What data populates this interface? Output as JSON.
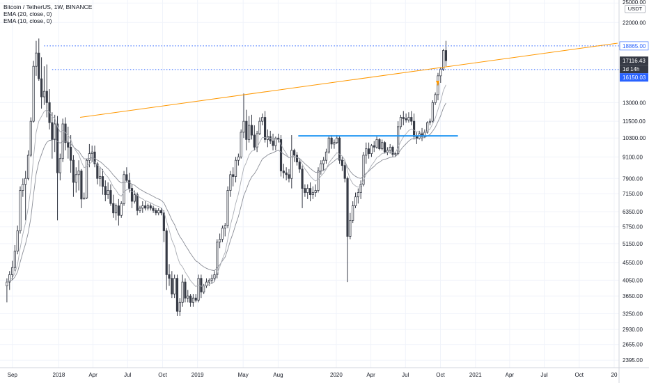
{
  "legend": {
    "symbol": "Bitcoin / TetherUS, 1W, BINANCE",
    "ema20": "EMA (20, close, 0)",
    "ema10": "EMA (10, close, 0)"
  },
  "axis_unit": "USDT",
  "colors": {
    "candle_up": "#ffffff",
    "candle_down": "#363a45",
    "candle_outline": "#363a45",
    "ema20": "#8a8d96",
    "ema10": "#a9acb3",
    "trendline": "#ff9800",
    "support_line": "#2196f3",
    "level_lines": "#2962ff",
    "current_price_tag": "#363a45",
    "level_tag": "#2962ff",
    "grid": "#f0f3fa"
  },
  "chart_data": {
    "type": "candlestick",
    "title": "Bitcoin / TetherUS, 1W, BINANCE",
    "interval": "1W",
    "y_scale": "log",
    "ylim": [
      2280,
      25500
    ],
    "x_ticks": [
      {
        "label": "Sep",
        "date": "2017-09-01"
      },
      {
        "label": "2018",
        "date": "2018-01-01"
      },
      {
        "label": "Apr",
        "date": "2018-04-01"
      },
      {
        "label": "Jul",
        "date": "2018-07-01"
      },
      {
        "label": "Oct",
        "date": "2018-10-01"
      },
      {
        "label": "2019",
        "date": "2019-01-01"
      },
      {
        "label": "May",
        "date": "2019-05-01"
      },
      {
        "label": "Aug",
        "date": "2019-08-01"
      },
      {
        "label": "2020",
        "date": "2020-01-01"
      },
      {
        "label": "Apr",
        "date": "2020-04-01"
      },
      {
        "label": "Jul",
        "date": "2020-07-01"
      },
      {
        "label": "Oct",
        "date": "2020-10-01"
      },
      {
        "label": "2021",
        "date": "2021-01-01"
      },
      {
        "label": "Apr",
        "date": "2021-04-01"
      },
      {
        "label": "Jul",
        "date": "2021-07-01"
      },
      {
        "label": "Oct",
        "date": "2021-10-01"
      },
      {
        "label": "20",
        "date": "2022-01-01"
      }
    ],
    "y_ticks": [
      {
        "label": "25000.00",
        "value": 25000
      },
      {
        "label": "22000.00",
        "value": 22000
      },
      {
        "label": "13000.00",
        "value": 13000
      },
      {
        "label": "11500.00",
        "value": 11500
      },
      {
        "label": "10300.00",
        "value": 10300
      },
      {
        "label": "9100.00",
        "value": 9100
      },
      {
        "label": "7900.00",
        "value": 7900
      },
      {
        "label": "7150.00",
        "value": 7150
      },
      {
        "label": "6350.00",
        "value": 6350
      },
      {
        "label": "5750.00",
        "value": 5750
      },
      {
        "label": "5150.00",
        "value": 5150
      },
      {
        "label": "4550.00",
        "value": 4550
      },
      {
        "label": "4050.00",
        "value": 4050
      },
      {
        "label": "3650.00",
        "value": 3650
      },
      {
        "label": "3250.00",
        "value": 3250
      },
      {
        "label": "2930.00",
        "value": 2930
      },
      {
        "label": "2655.00",
        "value": 2655
      },
      {
        "label": "2395.00",
        "value": 2395
      }
    ],
    "price_tags": [
      {
        "label": "18865.00",
        "value": 18865,
        "style": "level"
      },
      {
        "label": "17116.43",
        "value": 17116.43,
        "style": "current"
      },
      {
        "label": "1d 14h",
        "value": 15800,
        "style": "countdown"
      },
      {
        "label": "16150.03",
        "value": 15000,
        "style": "level"
      }
    ],
    "horizontal_levels": [
      18865,
      16150
    ],
    "resistance_trendline": {
      "from": {
        "date": "2018-02-26",
        "value": 11800
      },
      "to": {
        "date": "2022-01-10",
        "value": 19200
      }
    },
    "support_segment": {
      "from": {
        "date": "2019-09-23",
        "value": 10450
      },
      "to": {
        "date": "2020-11-16",
        "value": 10450
      }
    },
    "candles": [
      [
        3900,
        4100,
        3500,
        4000
      ],
      [
        4000,
        4300,
        3800,
        4200
      ],
      [
        4200,
        4600,
        4050,
        4400
      ],
      [
        4400,
        5100,
        4300,
        4900
      ],
      [
        4900,
        5800,
        4800,
        5600
      ],
      [
        5600,
        7500,
        5500,
        7300
      ],
      [
        7300,
        7900,
        7000,
        7600
      ],
      [
        7600,
        8300,
        6000,
        7900
      ],
      [
        7900,
        9500,
        7800,
        9200
      ],
      [
        9200,
        11800,
        9100,
        11500
      ],
      [
        11500,
        17100,
        11400,
        16500
      ],
      [
        16500,
        19500,
        15500,
        18000
      ],
      [
        18000,
        19800,
        15000,
        15200
      ],
      [
        15200,
        17500,
        12500,
        13500
      ],
      [
        13500,
        16500,
        12800,
        14000
      ],
      [
        14000,
        16700,
        11800,
        13000
      ],
      [
        13000,
        14200,
        10900,
        11400
      ],
      [
        11400,
        12200,
        9000,
        10200
      ],
      [
        10200,
        12000,
        9400,
        11300
      ],
      [
        11300,
        11900,
        6000,
        8200
      ],
      [
        8200,
        9300,
        7800,
        9000
      ],
      [
        9000,
        11700,
        8800,
        11300
      ],
      [
        11300,
        11800,
        9500,
        10000
      ],
      [
        10000,
        11100,
        9000,
        9700
      ],
      [
        9700,
        10500,
        8200,
        8900
      ],
      [
        8900,
        9200,
        7000,
        7700
      ],
      [
        7700,
        8500,
        7200,
        8100
      ],
      [
        8100,
        8900,
        7300,
        8300
      ],
      [
        8300,
        8400,
        6500,
        6900
      ],
      [
        6900,
        7200,
        6900,
        6950
      ],
      [
        6950,
        9000,
        6900,
        8900
      ],
      [
        8900,
        9900,
        8500,
        9300
      ],
      [
        9300,
        9800,
        8800,
        9400
      ],
      [
        9400,
        9800,
        8500,
        8700
      ],
      [
        8700,
        8800,
        7600,
        7900
      ],
      [
        7900,
        8500,
        7500,
        8000
      ],
      [
        8000,
        8400,
        7100,
        7500
      ],
      [
        7500,
        7800,
        6800,
        7100
      ],
      [
        7100,
        7700,
        6900,
        7300
      ],
      [
        7300,
        7600,
        6600,
        6700
      ],
      [
        6700,
        7100,
        6100,
        6300
      ],
      [
        6300,
        6700,
        6000,
        6600
      ],
      [
        6600,
        6900,
        5800,
        6200
      ],
      [
        6200,
        6800,
        6100,
        6700
      ],
      [
        6700,
        8300,
        6600,
        8100
      ],
      [
        8100,
        8500,
        7700,
        7800
      ],
      [
        7800,
        8200,
        7200,
        7400
      ],
      [
        7400,
        7600,
        6500,
        6800
      ],
      [
        6800,
        7300,
        6700,
        7100
      ],
      [
        7100,
        7200,
        6200,
        6400
      ],
      [
        6400,
        6600,
        6300,
        6500
      ],
      [
        6500,
        6800,
        6300,
        6600
      ],
      [
        6600,
        6800,
        6400,
        6500
      ],
      [
        6500,
        6700,
        6400,
        6600
      ],
      [
        6600,
        6700,
        6400,
        6500
      ],
      [
        6500,
        6600,
        6300,
        6400
      ],
      [
        6400,
        6500,
        6200,
        6300
      ],
      [
        6300,
        6500,
        6200,
        6400
      ],
      [
        6400,
        6500,
        6200,
        6300
      ],
      [
        6300,
        6400,
        5200,
        5600
      ],
      [
        5600,
        5700,
        3800,
        4200
      ],
      [
        4200,
        4500,
        3900,
        4100
      ],
      [
        4100,
        4300,
        3600,
        3700
      ],
      [
        3700,
        4200,
        3600,
        4100
      ],
      [
        4100,
        4200,
        3200,
        3300
      ],
      [
        3300,
        3600,
        3200,
        3500
      ],
      [
        3500,
        4200,
        3400,
        4000
      ],
      [
        4000,
        4100,
        3500,
        3600
      ],
      [
        3600,
        3800,
        3500,
        3650
      ],
      [
        3650,
        3700,
        3400,
        3500
      ],
      [
        3500,
        3700,
        3400,
        3600
      ],
      [
        3600,
        3700,
        3500,
        3550
      ],
      [
        3550,
        4200,
        3500,
        4100
      ],
      [
        4100,
        4200,
        3600,
        3750
      ],
      [
        3750,
        3950,
        3700,
        3900
      ],
      [
        3900,
        4100,
        3850,
        4000
      ],
      [
        4000,
        4100,
        3900,
        4050
      ],
      [
        4050,
        4200,
        3950,
        4100
      ],
      [
        4100,
        4300,
        4000,
        4200
      ],
      [
        4200,
        5300,
        4100,
        5200
      ],
      [
        5200,
        5500,
        5000,
        5300
      ],
      [
        5300,
        5800,
        5200,
        5700
      ],
      [
        5700,
        5900,
        5400,
        5800
      ],
      [
        5800,
        7500,
        5700,
        7300
      ],
      [
        7300,
        8300,
        7000,
        8100
      ],
      [
        8100,
        8500,
        7500,
        8000
      ],
      [
        8000,
        9100,
        7700,
        8900
      ],
      [
        8900,
        9300,
        8600,
        9100
      ],
      [
        9100,
        10900,
        9000,
        10700
      ],
      [
        10700,
        13800,
        10300,
        11500
      ],
      [
        11500,
        12400,
        9500,
        10200
      ],
      [
        10200,
        11900,
        10000,
        11200
      ],
      [
        11200,
        12000,
        10200,
        10500
      ],
      [
        10500,
        11200,
        9500,
        9700
      ],
      [
        9700,
        10800,
        9400,
        10600
      ],
      [
        10600,
        11800,
        10500,
        11500
      ],
      [
        11500,
        12100,
        11200,
        11800
      ],
      [
        11800,
        12300,
        10000,
        10200
      ],
      [
        10200,
        10900,
        9700,
        10400
      ],
      [
        10400,
        10800,
        9900,
        10100
      ],
      [
        10100,
        10600,
        9500,
        9800
      ],
      [
        9800,
        10400,
        9500,
        10300
      ],
      [
        10300,
        10600,
        10000,
        10200
      ],
      [
        10200,
        10500,
        8000,
        8300
      ],
      [
        8300,
        8700,
        7900,
        8200
      ],
      [
        8200,
        8500,
        7800,
        8100
      ],
      [
        8100,
        8400,
        7700,
        7900
      ],
      [
        7900,
        10500,
        7400,
        9500
      ],
      [
        9500,
        9600,
        8800,
        9200
      ],
      [
        9200,
        9400,
        8600,
        8800
      ],
      [
        8800,
        9000,
        8200,
        8400
      ],
      [
        8400,
        8600,
        6500,
        7400
      ],
      [
        7400,
        7600,
        7000,
        7200
      ],
      [
        7200,
        7600,
        6900,
        7400
      ],
      [
        7400,
        7700,
        6800,
        7100
      ],
      [
        7100,
        7500,
        6900,
        7200
      ],
      [
        7200,
        7600,
        7000,
        7300
      ],
      [
        7300,
        8500,
        7200,
        8300
      ],
      [
        8300,
        8900,
        8100,
        8700
      ],
      [
        8700,
        9100,
        8300,
        8900
      ],
      [
        8900,
        9600,
        8700,
        9400
      ],
      [
        9400,
        10400,
        9300,
        10300
      ],
      [
        10300,
        10500,
        9600,
        9900
      ],
      [
        9900,
        10200,
        9600,
        10000
      ],
      [
        10000,
        10500,
        9900,
        10300
      ],
      [
        10300,
        10400,
        8700,
        8900
      ],
      [
        8900,
        9100,
        8300,
        8600
      ],
      [
        8600,
        8800,
        7700,
        7900
      ],
      [
        7900,
        8000,
        4000,
        5400
      ],
      [
        5400,
        6300,
        5300,
        6000
      ],
      [
        6000,
        6800,
        5900,
        6600
      ],
      [
        6600,
        7200,
        6500,
        7000
      ],
      [
        7000,
        7400,
        6700,
        7200
      ],
      [
        7200,
        7800,
        6900,
        7600
      ],
      [
        7600,
        9400,
        7500,
        9200
      ],
      [
        9200,
        10000,
        8700,
        9600
      ],
      [
        9600,
        10000,
        9000,
        9300
      ],
      [
        9300,
        9900,
        9100,
        9800
      ],
      [
        9800,
        10100,
        9400,
        9700
      ],
      [
        9700,
        10400,
        9600,
        10200
      ],
      [
        10200,
        10300,
        9500,
        9600
      ],
      [
        9600,
        10200,
        9500,
        10000
      ],
      [
        10000,
        10100,
        9300,
        9400
      ],
      [
        9400,
        9700,
        9200,
        9500
      ],
      [
        9500,
        9900,
        9300,
        9700
      ],
      [
        9700,
        9800,
        9100,
        9250
      ],
      [
        9250,
        9400,
        9100,
        9300
      ],
      [
        9300,
        11500,
        9200,
        11100
      ],
      [
        11100,
        12000,
        10900,
        11800
      ],
      [
        11800,
        12300,
        11200,
        11700
      ],
      [
        11700,
        12100,
        11400,
        11600
      ],
      [
        11600,
        12200,
        11400,
        11800
      ],
      [
        11800,
        12300,
        11200,
        11500
      ],
      [
        11500,
        12100,
        10200,
        10400
      ],
      [
        10400,
        10700,
        9900,
        10300
      ],
      [
        10300,
        10800,
        10200,
        10600
      ],
      [
        10600,
        11000,
        10100,
        10400
      ],
      [
        10400,
        10900,
        10300,
        10700
      ],
      [
        10700,
        11500,
        10600,
        11400
      ],
      [
        11400,
        11700,
        11200,
        11500
      ],
      [
        11500,
        13200,
        11400,
        13000
      ],
      [
        13000,
        13900,
        12800,
        13700
      ],
      [
        13700,
        15800,
        13200,
        15500
      ],
      [
        15500,
        16400,
        14800,
        16200
      ],
      [
        16200,
        18500,
        16000,
        18300
      ],
      [
        18300,
        19500,
        16500,
        17116.43
      ]
    ]
  }
}
